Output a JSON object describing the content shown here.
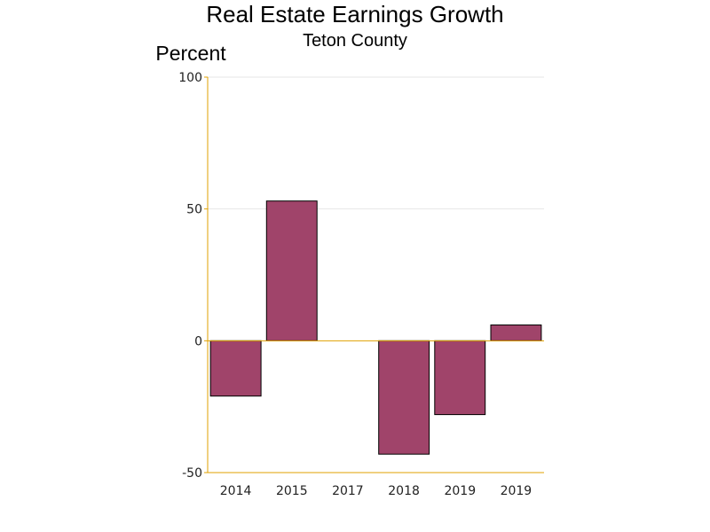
{
  "chart_data": {
    "type": "bar",
    "title": "Real Estate Earnings Growth",
    "subtitle": "Teton County",
    "ylabel": "Percent",
    "xlabel": "",
    "categories": [
      "2014",
      "2015",
      "2017",
      "2018",
      "2019",
      "2019"
    ],
    "values": [
      -21,
      53,
      0,
      -43,
      -28,
      6
    ],
    "ylim": [
      -50,
      100
    ],
    "yticks": [
      -50,
      0,
      50,
      100
    ],
    "grid": true,
    "legend": "none",
    "colors": {
      "bar_fill": "#a0446a",
      "bar_stroke": "#000000",
      "axis": "#e0a000",
      "grid": "#e6e6e6"
    }
  }
}
